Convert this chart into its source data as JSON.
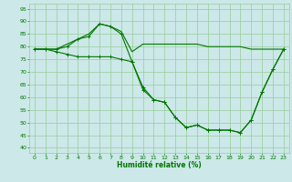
{
  "title": "",
  "xlabel": "Humidité relative (%)",
  "ylabel": "",
  "background_color": "#cce8e8",
  "grid_color": "#99cc99",
  "line_color": "#007700",
  "xlim": [
    -0.5,
    23.5
  ],
  "ylim": [
    38,
    97
  ],
  "yticks": [
    40,
    45,
    50,
    55,
    60,
    65,
    70,
    75,
    80,
    85,
    90,
    95
  ],
  "xticks": [
    0,
    1,
    2,
    3,
    4,
    5,
    6,
    7,
    8,
    9,
    10,
    11,
    12,
    13,
    14,
    15,
    16,
    17,
    18,
    19,
    20,
    21,
    22,
    23
  ],
  "series": [
    {
      "x": [
        0,
        1,
        2,
        3,
        4,
        5,
        6,
        7,
        8,
        9,
        10,
        11,
        12,
        13,
        14,
        15,
        16,
        17,
        18,
        19,
        20,
        21,
        22,
        23
      ],
      "y": [
        79,
        79,
        79,
        81,
        83,
        85,
        89,
        88,
        86,
        78,
        81,
        81,
        81,
        81,
        81,
        81,
        80,
        80,
        80,
        80,
        79,
        79,
        79,
        79
      ],
      "marker": false
    },
    {
      "x": [
        0,
        1,
        2,
        3,
        4,
        5,
        6,
        7,
        8,
        9,
        10,
        11,
        12,
        13,
        14,
        15,
        16,
        17,
        18,
        19,
        20,
        21,
        22,
        23
      ],
      "y": [
        79,
        79,
        79,
        80,
        83,
        84,
        89,
        88,
        85,
        74,
        63,
        59,
        58,
        52,
        48,
        49,
        47,
        47,
        47,
        46,
        51,
        62,
        71,
        79
      ],
      "marker": true
    },
    {
      "x": [
        0,
        1,
        2,
        3,
        4,
        5,
        6,
        7,
        8,
        9,
        10,
        11,
        12,
        13,
        14,
        15,
        16,
        17,
        18,
        19,
        20,
        21,
        22,
        23
      ],
      "y": [
        79,
        79,
        78,
        77,
        76,
        76,
        76,
        76,
        75,
        74,
        64,
        59,
        58,
        52,
        48,
        49,
        47,
        47,
        47,
        46,
        51,
        62,
        71,
        79
      ],
      "marker": true
    }
  ]
}
